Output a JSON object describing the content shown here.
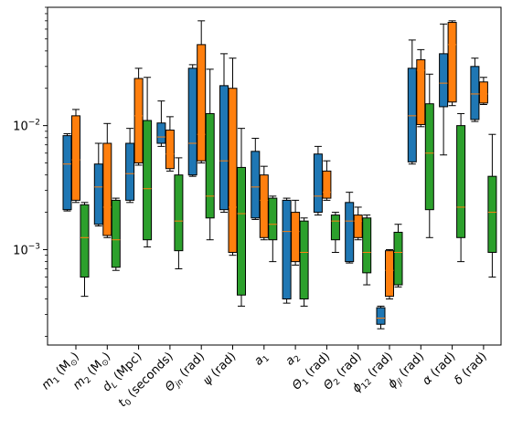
{
  "chart_data": {
    "type": "box",
    "title": "",
    "xlabel": "",
    "ylabel": "",
    "yscale": "log",
    "ylim": [
      0.00017,
      0.09
    ],
    "y_tick_labels": [
      {
        "value": 0.001,
        "label": "10^{-3}"
      },
      {
        "value": 0.01,
        "label": "10^{-2}"
      }
    ],
    "categories": [
      {
        "base": "m",
        "sub": "1",
        "unit": " (M",
        "unit_sub": "⊙",
        "unit_end": ")"
      },
      {
        "base": "m",
        "sub": "2",
        "unit": " (M",
        "unit_sub": "⊙",
        "unit_end": ")"
      },
      {
        "base": "d",
        "sub": "L",
        "unit": " (Mpc)",
        "unit_sub": "",
        "unit_end": ""
      },
      {
        "base": "t",
        "sub": "0",
        "unit": " (seconds)",
        "unit_sub": "",
        "unit_end": ""
      },
      {
        "base": "Θ",
        "sub": "jn",
        "unit": " (rad)",
        "unit_sub": "",
        "unit_end": ""
      },
      {
        "base": "ψ",
        "sub": "",
        "unit": " (rad)",
        "unit_sub": "",
        "unit_end": ""
      },
      {
        "base": "a",
        "sub": "1",
        "unit": "",
        "unit_sub": "",
        "unit_end": ""
      },
      {
        "base": "a",
        "sub": "2",
        "unit": "",
        "unit_sub": "",
        "unit_end": ""
      },
      {
        "base": "Θ",
        "sub": "1",
        "unit": " (rad)",
        "unit_sub": "",
        "unit_end": ""
      },
      {
        "base": "Θ",
        "sub": "2",
        "unit": " (rad)",
        "unit_sub": "",
        "unit_end": ""
      },
      {
        "base": "ϕ",
        "sub": "12",
        "unit": " (rad)",
        "unit_sub": "",
        "unit_end": ""
      },
      {
        "base": "ϕ",
        "sub": "jl",
        "unit": " (rad)",
        "unit_sub": "",
        "unit_end": ""
      },
      {
        "base": "α",
        "sub": "",
        "unit": " (rad)",
        "unit_sub": "",
        "unit_end": ""
      },
      {
        "base": "δ",
        "sub": "",
        "unit": " (rad)",
        "unit_sub": "",
        "unit_end": ""
      }
    ],
    "colors": {
      "blue": "#1f77b4",
      "orange": "#ff7f0e",
      "green": "#2ca02c",
      "median": "#ff7f0e",
      "ink": "#000000"
    },
    "series": [
      {
        "key": "blue",
        "boxes": [
          {
            "whislo": 0.00205,
            "q1": 0.0021,
            "med": 0.0049,
            "q3": 0.0083,
            "whishi": 0.0086
          },
          {
            "whislo": 0.00155,
            "q1": 0.0016,
            "med": 0.0032,
            "q3": 0.0049,
            "whishi": 0.0072
          },
          {
            "whislo": 0.0024,
            "q1": 0.0025,
            "med": 0.0041,
            "q3": 0.0072,
            "whishi": 0.0095
          },
          {
            "whislo": 0.0068,
            "q1": 0.0072,
            "med": 0.0081,
            "q3": 0.0105,
            "whishi": 0.0158
          },
          {
            "whislo": 0.0039,
            "q1": 0.004,
            "med": 0.0072,
            "q3": 0.029,
            "whishi": 0.031
          },
          {
            "whislo": 0.002,
            "q1": 0.0021,
            "med": 0.0052,
            "q3": 0.021,
            "whishi": 0.038
          },
          {
            "whislo": 0.00175,
            "q1": 0.0018,
            "med": 0.0032,
            "q3": 0.0062,
            "whishi": 0.0079
          },
          {
            "whislo": 0.00037,
            "q1": 0.0004,
            "med": 0.0014,
            "q3": 0.0025,
            "whishi": 0.0026
          },
          {
            "whislo": 0.0019,
            "q1": 0.002,
            "med": 0.0027,
            "q3": 0.0059,
            "whishi": 0.0068
          },
          {
            "whislo": 0.00078,
            "q1": 0.0008,
            "med": 0.0017,
            "q3": 0.0024,
            "whishi": 0.0029
          },
          {
            "whislo": 0.00023,
            "q1": 0.00025,
            "med": 0.00028,
            "q3": 0.00034,
            "whishi": 0.00035
          },
          {
            "whislo": 0.0049,
            "q1": 0.0051,
            "med": 0.012,
            "q3": 0.029,
            "whishi": 0.049
          },
          {
            "whislo": 0.0058,
            "q1": 0.0142,
            "med": 0.022,
            "q3": 0.038,
            "whishi": 0.066
          },
          {
            "whislo": 0.0108,
            "q1": 0.0112,
            "med": 0.018,
            "q3": 0.03,
            "whishi": 0.035
          }
        ]
      },
      {
        "key": "orange",
        "boxes": [
          {
            "whislo": 0.0024,
            "q1": 0.0025,
            "med": 0.0053,
            "q3": 0.012,
            "whishi": 0.0135
          },
          {
            "whislo": 0.00125,
            "q1": 0.0013,
            "med": 0.0022,
            "q3": 0.0072,
            "whishi": 0.0104
          },
          {
            "whislo": 0.0048,
            "q1": 0.005,
            "med": 0.012,
            "q3": 0.024,
            "whishi": 0.029
          },
          {
            "whislo": 0.0043,
            "q1": 0.0045,
            "med": 0.0059,
            "q3": 0.0092,
            "whishi": 0.0118
          },
          {
            "whislo": 0.005,
            "q1": 0.0052,
            "med": 0.0085,
            "q3": 0.045,
            "whishi": 0.07
          },
          {
            "whislo": 0.0009,
            "q1": 0.00095,
            "med": 0.0022,
            "q3": 0.02,
            "whishi": 0.035
          },
          {
            "whislo": 0.0012,
            "q1": 0.00125,
            "med": 0.0025,
            "q3": 0.004,
            "whishi": 0.0047
          },
          {
            "whislo": 0.00075,
            "q1": 0.0008,
            "med": 0.0014,
            "q3": 0.002,
            "whishi": 0.0025
          },
          {
            "whislo": 0.0025,
            "q1": 0.0026,
            "med": 0.0029,
            "q3": 0.0043,
            "whishi": 0.0052
          },
          {
            "whislo": 0.0012,
            "q1": 0.00125,
            "med": 0.0017,
            "q3": 0.0019,
            "whishi": 0.0022
          },
          {
            "whislo": 0.0004,
            "q1": 0.00042,
            "med": 0.00068,
            "q3": 0.00098,
            "whishi": 0.001
          },
          {
            "whislo": 0.0098,
            "q1": 0.0102,
            "med": 0.028,
            "q3": 0.034,
            "whishi": 0.041
          },
          {
            "whislo": 0.0145,
            "q1": 0.0155,
            "med": 0.045,
            "q3": 0.068,
            "whishi": 0.07
          },
          {
            "whislo": 0.0148,
            "q1": 0.0152,
            "med": 0.018,
            "q3": 0.0225,
            "whishi": 0.0245
          }
        ]
      },
      {
        "key": "green",
        "boxes": [
          {
            "whislo": 0.00042,
            "q1": 0.0006,
            "med": 0.00125,
            "q3": 0.0023,
            "whishi": 0.0024
          },
          {
            "whislo": 0.00068,
            "q1": 0.00072,
            "med": 0.0012,
            "q3": 0.0025,
            "whishi": 0.0026
          },
          {
            "whislo": 0.00105,
            "q1": 0.0012,
            "med": 0.0031,
            "q3": 0.011,
            "whishi": 0.0245
          },
          {
            "whislo": 0.0007,
            "q1": 0.00098,
            "med": 0.0017,
            "q3": 0.004,
            "whishi": 0.0055
          },
          {
            "whislo": 0.0012,
            "q1": 0.0018,
            "med": 0.0027,
            "q3": 0.0125,
            "whishi": 0.0285
          },
          {
            "whislo": 0.00035,
            "q1": 0.00043,
            "med": 0.00195,
            "q3": 0.0046,
            "whishi": 0.0095
          },
          {
            "whislo": 0.0008,
            "q1": 0.0012,
            "med": 0.0016,
            "q3": 0.0026,
            "whishi": 0.0027
          },
          {
            "whislo": 0.00035,
            "q1": 0.0004,
            "med": 0.00095,
            "q3": 0.0017,
            "whishi": 0.0018
          },
          {
            "whislo": 0.00095,
            "q1": 0.0012,
            "med": 0.0017,
            "q3": 0.0019,
            "whishi": 0.002
          },
          {
            "whislo": 0.00052,
            "q1": 0.00065,
            "med": 0.00095,
            "q3": 0.0018,
            "whishi": 0.0019
          },
          {
            "whislo": 0.0005,
            "q1": 0.00052,
            "med": 0.00095,
            "q3": 0.00138,
            "whishi": 0.0016
          },
          {
            "whislo": 0.00125,
            "q1": 0.0021,
            "med": 0.006,
            "q3": 0.015,
            "whishi": 0.026
          },
          {
            "whislo": 0.0008,
            "q1": 0.00125,
            "med": 0.0022,
            "q3": 0.01,
            "whishi": 0.0125
          },
          {
            "whislo": 0.0006,
            "q1": 0.00095,
            "med": 0.002,
            "q3": 0.0039,
            "whishi": 0.0085
          }
        ]
      }
    ]
  }
}
